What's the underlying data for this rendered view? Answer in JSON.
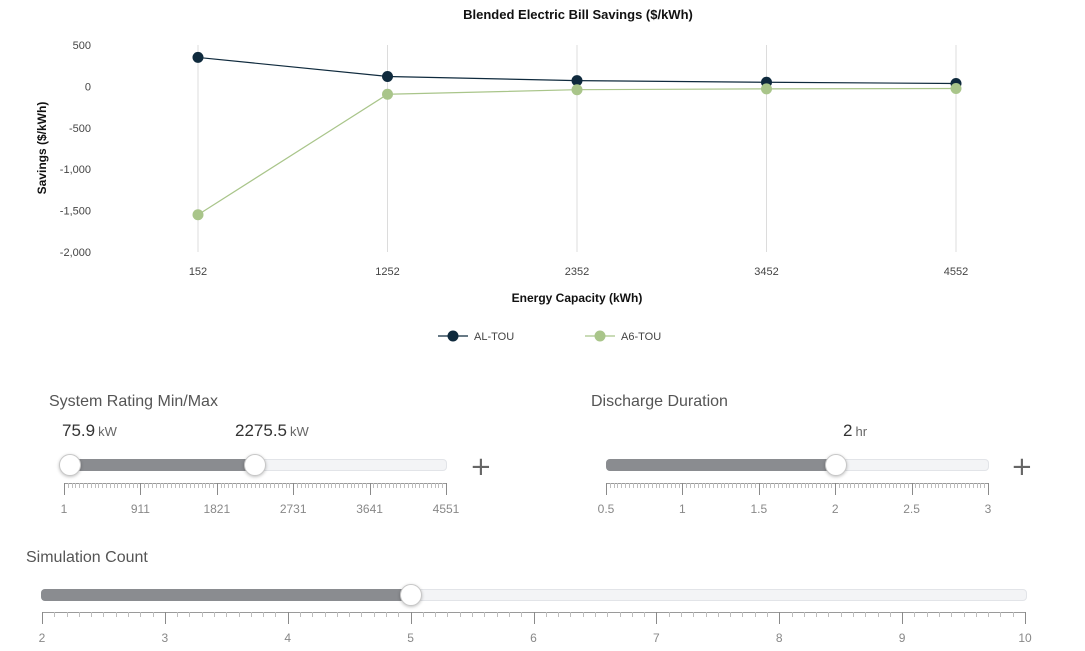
{
  "chart_data": {
    "type": "line",
    "title": "Blended Electric Bill Savings ($/kWh)",
    "xlabel": "Energy Capacity (kWh)",
    "ylabel": "Savings ($/kWh)",
    "categories": [
      "152",
      "1252",
      "2352",
      "3452",
      "4552"
    ],
    "y_ticks": [
      "500",
      "0",
      "-500",
      "-1,000",
      "-1,500",
      "-2,000"
    ],
    "ylim": [
      -2000,
      500
    ],
    "grid": "vertical",
    "legend_position": "bottom-center",
    "series": [
      {
        "name": "AL-TOU",
        "color": "#0f2a3d",
        "values": [
          350,
          120,
          70,
          50,
          35
        ]
      },
      {
        "name": "A6-TOU",
        "color": "#a9c58a",
        "values": [
          -1550,
          -95,
          -40,
          -30,
          -25
        ]
      }
    ]
  },
  "system_rating": {
    "title": "System Rating Min/Max",
    "min_value": "75.9",
    "max_value": "2275.5",
    "unit": "kW",
    "scale_labels": [
      "1",
      "911",
      "1821",
      "2731",
      "3641",
      "4551"
    ],
    "range": [
      1,
      4551
    ],
    "selected": [
      75.9,
      2275.5
    ],
    "add_symbol": "+"
  },
  "discharge_duration": {
    "title": "Discharge Duration",
    "value": "2",
    "unit": "hr",
    "scale_labels": [
      "0.5",
      "1",
      "1.5",
      "2",
      "2.5",
      "3"
    ],
    "range": [
      0.5,
      3
    ],
    "selected": 2,
    "add_symbol": "+"
  },
  "simulation_count": {
    "title": "Simulation Count",
    "scale_labels": [
      "2",
      "3",
      "4",
      "5",
      "6",
      "7",
      "8",
      "9",
      "10"
    ],
    "range": [
      2,
      10
    ],
    "selected": 5
  }
}
